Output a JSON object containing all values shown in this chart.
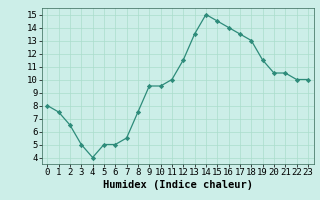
{
  "x": [
    0,
    1,
    2,
    3,
    4,
    5,
    6,
    7,
    8,
    9,
    10,
    11,
    12,
    13,
    14,
    15,
    16,
    17,
    18,
    19,
    20,
    21,
    22,
    23
  ],
  "y": [
    8,
    7.5,
    6.5,
    5,
    4,
    5,
    5,
    5.5,
    7.5,
    9.5,
    9.5,
    10,
    11.5,
    13.5,
    15,
    14.5,
    14,
    13.5,
    13,
    11.5,
    10.5,
    10.5,
    10,
    10
  ],
  "line_color": "#2d8b7a",
  "marker_color": "#2d8b7a",
  "bg_color": "#cceee8",
  "grid_color": "#aaddcc",
  "xlabel": "Humidex (Indice chaleur)",
  "xlim": [
    -0.5,
    23.5
  ],
  "ylim": [
    3.5,
    15.5
  ],
  "yticks": [
    4,
    5,
    6,
    7,
    8,
    9,
    10,
    11,
    12,
    13,
    14,
    15
  ],
  "xticks": [
    0,
    1,
    2,
    3,
    4,
    5,
    6,
    7,
    8,
    9,
    10,
    11,
    12,
    13,
    14,
    15,
    16,
    17,
    18,
    19,
    20,
    21,
    22,
    23
  ],
  "xlabel_fontsize": 7.5,
  "tick_fontsize": 6.5,
  "font_family": "monospace"
}
